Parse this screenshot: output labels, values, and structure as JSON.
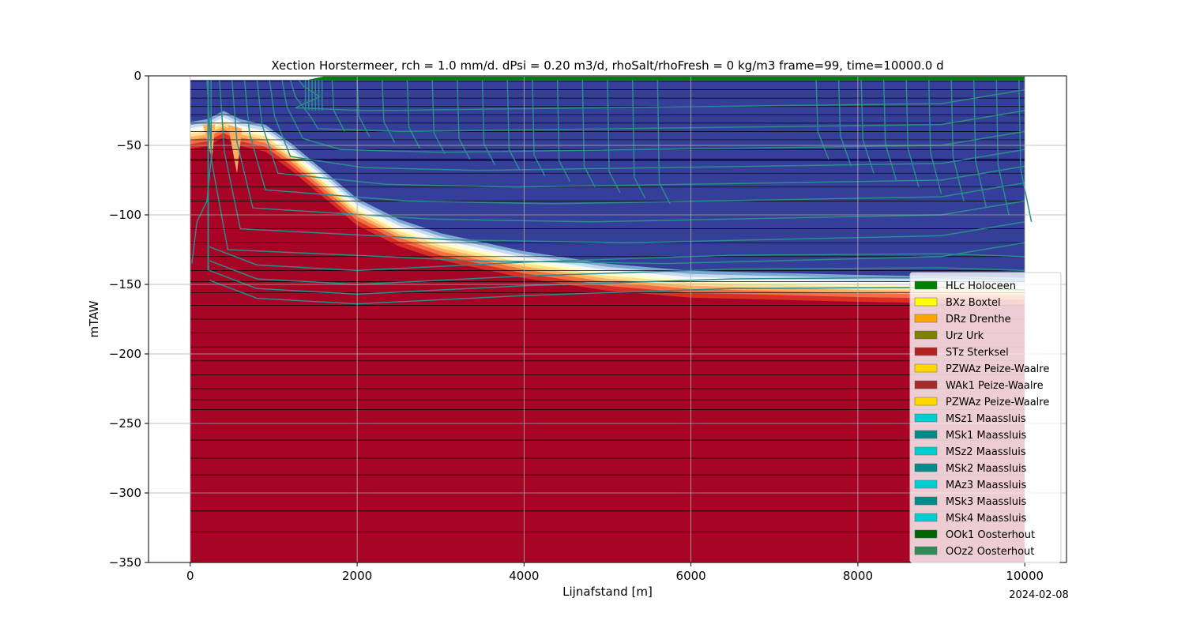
{
  "chart_data": {
    "type": "heatmap",
    "title": "Xection Horstermeer, rch = 1.0 mm/d. dPsi = 0.20 m3/d, rhoSalt/rhoFresh = 0 kg/m3 frame=99, time=10000.0 d",
    "xlabel": "Lijnafstand [m]",
    "ylabel": "mTAW",
    "xlim": [
      -500,
      10500
    ],
    "ylim": [
      -350,
      0
    ],
    "xticks": [
      0,
      2000,
      4000,
      6000,
      8000,
      10000
    ],
    "yticks": [
      0,
      -50,
      -100,
      -150,
      -200,
      -250,
      -300,
      -350
    ],
    "grid": true,
    "legend_position": "right",
    "date_label": "2024-02-08",
    "colors": {
      "fresh": "#353f99",
      "salt": "#a80426",
      "contour": "#2a8c8c",
      "surface": "#008000"
    },
    "layer_boundaries": [
      -4,
      -10,
      -16,
      -22,
      -28,
      -34,
      -40,
      -46,
      -53,
      -60,
      -61,
      -70,
      -80,
      -90,
      -100,
      -110,
      -120,
      -130,
      -140,
      -148,
      -156,
      -165,
      -175,
      -185,
      -195,
      -205,
      -215,
      -225,
      -233,
      -240,
      -250,
      -262,
      -275,
      -287,
      -300,
      -313,
      -328
    ],
    "interface_depth": [
      {
        "x": 0,
        "z": -40
      },
      {
        "x": 200,
        "z": -38
      },
      {
        "x": 400,
        "z": -32
      },
      {
        "x": 600,
        "z": -38
      },
      {
        "x": 900,
        "z": -42
      },
      {
        "x": 1200,
        "z": -55
      },
      {
        "x": 1600,
        "z": -75
      },
      {
        "x": 2000,
        "z": -95
      },
      {
        "x": 2500,
        "z": -110
      },
      {
        "x": 3000,
        "z": -120
      },
      {
        "x": 4000,
        "z": -133
      },
      {
        "x": 5000,
        "z": -142
      },
      {
        "x": 6000,
        "z": -147
      },
      {
        "x": 8000,
        "z": -150
      },
      {
        "x": 10000,
        "z": -152
      }
    ],
    "legend": [
      {
        "label": "HLc Holoceen",
        "color": "#008000"
      },
      {
        "label": "BXz Boxtel",
        "color": "#ffff00"
      },
      {
        "label": "DRz Drenthe",
        "color": "#ffa500"
      },
      {
        "label": "Urz Urk",
        "color": "#808000"
      },
      {
        "label": "STz Sterksel",
        "color": "#b22222"
      },
      {
        "label": "PZWAz Peize-Waalre",
        "color": "#ffd700"
      },
      {
        "label": "WAk1 Peize-Waalre",
        "color": "#a52a2a"
      },
      {
        "label": "PZWAz Peize-Waalre",
        "color": "#ffd700"
      },
      {
        "label": "MSz1 Maassluis",
        "color": "#00ced1"
      },
      {
        "label": "MSk1 Maassluis",
        "color": "#008b8b"
      },
      {
        "label": "MSz2 Maassluis",
        "color": "#00ced1"
      },
      {
        "label": "MSk2 Maassluis",
        "color": "#008b8b"
      },
      {
        "label": "MAz3 Maassluis",
        "color": "#00ced1"
      },
      {
        "label": "MSk3 Maassluis",
        "color": "#008b8b"
      },
      {
        "label": "MSk4 Maassluis",
        "color": "#00ced1"
      },
      {
        "label": "OOk1 Oosterhout",
        "color": "#006400"
      },
      {
        "label": "OOz2 Oosterhout",
        "color": "#2e8b57"
      }
    ]
  }
}
